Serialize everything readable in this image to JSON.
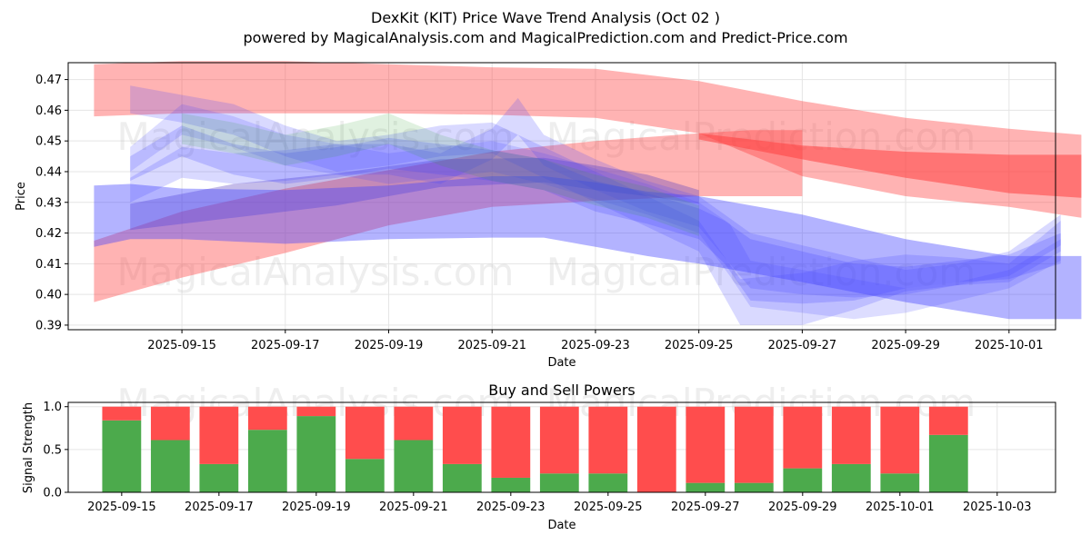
{
  "figure": {
    "title_line1": "DexKit (KIT) Price Wave Trend Analysis (Oct 02 )",
    "title_line2": "powered by MagicalAnalysis.com and MagicalPrediction.com and Predict-Price.com",
    "watermarks": [
      "MagicalAnalysis.com",
      "MagicalPrediction.com"
    ]
  },
  "chart_data": [
    {
      "type": "area",
      "title": "",
      "xlabel": "Date",
      "ylabel": "Price",
      "x_start": "2025-09-13",
      "xlim": [
        -0.2,
        18.9
      ],
      "ylim": [
        0.3885,
        0.4755
      ],
      "x_ticks": [
        {
          "pos": 2,
          "label": "2025-09-15"
        },
        {
          "pos": 4,
          "label": "2025-09-17"
        },
        {
          "pos": 6,
          "label": "2025-09-19"
        },
        {
          "pos": 8,
          "label": "2025-09-21"
        },
        {
          "pos": 10,
          "label": "2025-09-23"
        },
        {
          "pos": 12,
          "label": "2025-09-25"
        },
        {
          "pos": 14,
          "label": "2025-09-27"
        },
        {
          "pos": 16,
          "label": "2025-09-29"
        },
        {
          "pos": 18,
          "label": "2025-10-01"
        }
      ],
      "y_ticks": [
        0.39,
        0.4,
        0.41,
        0.42,
        0.43,
        0.44,
        0.45,
        0.46,
        0.47
      ],
      "grid": true,
      "series": [
        {
          "name": "red-upper-band",
          "color": "#ff4040",
          "opacity": 0.4,
          "x": [
            0.3,
            2,
            4,
            6,
            8,
            10,
            12,
            14,
            16,
            18,
            19.4
          ],
          "upper": [
            0.475,
            0.476,
            0.476,
            0.475,
            0.474,
            0.4735,
            0.4695,
            0.463,
            0.4575,
            0.454,
            0.452
          ],
          "lower": [
            0.458,
            0.459,
            0.459,
            0.459,
            0.4585,
            0.4575,
            0.4525,
            0.4385,
            0.432,
            0.4285,
            0.425
          ]
        },
        {
          "name": "red-lower-band",
          "color": "#ff4040",
          "opacity": 0.4,
          "x": [
            0.3,
            2,
            4,
            6,
            8,
            10,
            12,
            13,
            14
          ],
          "upper": [
            0.4175,
            0.427,
            0.4345,
            0.4405,
            0.4465,
            0.45,
            0.4525,
            0.4535,
            0.4535
          ],
          "lower": [
            0.3975,
            0.4055,
            0.4135,
            0.4225,
            0.4285,
            0.4305,
            0.432,
            0.432,
            0.432
          ]
        },
        {
          "name": "red-forecast-band",
          "color": "#ff4040",
          "opacity": 0.55,
          "x": [
            12,
            14,
            16,
            18,
            19.4
          ],
          "upper": [
            0.4525,
            0.4485,
            0.4465,
            0.4455,
            0.4455
          ],
          "lower": [
            0.4505,
            0.444,
            0.438,
            0.433,
            0.4315
          ]
        },
        {
          "name": "purple-band",
          "color": "#5a3fc0",
          "opacity": 0.35,
          "x": [
            1,
            3,
            5,
            7,
            9,
            10,
            11,
            12
          ],
          "upper": [
            0.4295,
            0.436,
            0.4395,
            0.444,
            0.4445,
            0.442,
            0.439,
            0.434
          ],
          "lower": [
            0.421,
            0.425,
            0.429,
            0.435,
            0.4365,
            0.434,
            0.432,
            0.4295
          ]
        },
        {
          "name": "blue-base-band",
          "color": "#4040ff",
          "opacity": 0.4,
          "x": [
            0.3,
            1,
            2,
            4,
            6,
            8,
            9,
            10,
            11,
            12,
            14,
            16,
            18
          ],
          "upper": [
            0.4355,
            0.436,
            0.4345,
            0.434,
            0.4355,
            0.4385,
            0.4385,
            0.4365,
            0.4335,
            0.432,
            0.426,
            0.418,
            0.4125
          ],
          "lower": [
            0.4155,
            0.418,
            0.418,
            0.4165,
            0.418,
            0.4185,
            0.4185,
            0.4155,
            0.4125,
            0.41,
            0.404,
            0.3975,
            0.392
          ]
        },
        {
          "name": "blue-forecast-box",
          "color": "#4040ff",
          "opacity": 0.4,
          "x": [
            18,
            19.4
          ],
          "upper": [
            0.4125,
            0.4125
          ],
          "lower": [
            0.392,
            0.392
          ]
        },
        {
          "name": "blue-wave-1",
          "color": "#4040ff",
          "opacity": 0.22,
          "x": [
            1,
            2,
            3,
            4,
            5,
            6,
            7,
            8,
            9,
            10,
            11,
            12,
            12.5,
            13,
            14,
            15,
            16,
            17,
            18,
            19
          ],
          "upper": [
            0.445,
            0.455,
            0.449,
            0.446,
            0.448,
            0.451,
            0.449,
            0.447,
            0.444,
            0.437,
            0.433,
            0.428,
            0.424,
            0.418,
            0.414,
            0.41,
            0.409,
            0.411,
            0.413,
            0.42
          ],
          "lower": [
            0.437,
            0.445,
            0.439,
            0.436,
            0.438,
            0.441,
            0.439,
            0.437,
            0.434,
            0.427,
            0.423,
            0.418,
            0.41,
            0.398,
            0.397,
            0.398,
            0.402,
            0.404,
            0.405,
            0.41
          ]
        },
        {
          "name": "blue-wave-2",
          "color": "#4040ff",
          "opacity": 0.2,
          "x": [
            1,
            2,
            3,
            4,
            5,
            6,
            7,
            8,
            9,
            10,
            11,
            12,
            12.8,
            14,
            15,
            16,
            17,
            18,
            19
          ],
          "upper": [
            0.468,
            0.465,
            0.462,
            0.455,
            0.45,
            0.452,
            0.455,
            0.456,
            0.448,
            0.44,
            0.432,
            0.424,
            0.405,
            0.407,
            0.411,
            0.413,
            0.412,
            0.41,
            0.424
          ],
          "lower": [
            0.459,
            0.456,
            0.452,
            0.445,
            0.44,
            0.442,
            0.445,
            0.446,
            0.438,
            0.43,
            0.422,
            0.414,
            0.39,
            0.39,
            0.395,
            0.401,
            0.403,
            0.404,
            0.414
          ]
        },
        {
          "name": "blue-wave-3",
          "color": "#4040ff",
          "opacity": 0.2,
          "x": [
            1,
            2,
            3,
            4,
            5,
            6,
            7,
            8,
            8.5,
            9,
            10,
            11,
            12,
            12.5,
            13,
            14,
            15,
            16,
            17,
            18,
            19
          ],
          "upper": [
            0.438,
            0.448,
            0.446,
            0.447,
            0.449,
            0.449,
            0.446,
            0.454,
            0.464,
            0.452,
            0.444,
            0.437,
            0.432,
            0.426,
            0.42,
            0.416,
            0.412,
            0.408,
            0.41,
            0.414,
            0.426
          ],
          "lower": [
            0.43,
            0.438,
            0.436,
            0.437,
            0.439,
            0.439,
            0.436,
            0.444,
            0.452,
            0.442,
            0.434,
            0.427,
            0.422,
            0.412,
            0.402,
            0.4,
            0.399,
            0.4,
            0.403,
            0.406,
            0.416
          ]
        },
        {
          "name": "blue-wave-4",
          "color": "#4040ff",
          "opacity": 0.18,
          "x": [
            1,
            2,
            3,
            4,
            5,
            6,
            7,
            8,
            9,
            10,
            11,
            12,
            12.6,
            13,
            14,
            15,
            16,
            17,
            18,
            19
          ],
          "upper": [
            0.448,
            0.462,
            0.458,
            0.452,
            0.449,
            0.446,
            0.448,
            0.45,
            0.446,
            0.441,
            0.436,
            0.43,
            0.423,
            0.411,
            0.408,
            0.405,
            0.402,
            0.404,
            0.408,
            0.418
          ],
          "lower": [
            0.44,
            0.452,
            0.448,
            0.442,
            0.439,
            0.436,
            0.438,
            0.44,
            0.436,
            0.431,
            0.426,
            0.42,
            0.406,
            0.396,
            0.394,
            0.392,
            0.394,
            0.398,
            0.402,
            0.411
          ]
        },
        {
          "name": "green-wave",
          "color": "#2ca02c",
          "opacity": 0.15,
          "x": [
            2,
            3,
            4,
            5,
            6,
            7,
            8,
            9,
            10,
            11,
            12
          ],
          "upper": [
            0.459,
            0.456,
            0.452,
            0.455,
            0.459,
            0.452,
            0.447,
            0.444,
            0.439,
            0.435,
            0.429
          ],
          "lower": [
            0.449,
            0.446,
            0.442,
            0.445,
            0.449,
            0.442,
            0.437,
            0.434,
            0.429,
            0.425,
            0.419
          ]
        }
      ]
    },
    {
      "type": "bar",
      "title": "Buy and Sell Powers",
      "xlabel": "Date",
      "ylabel": "Signal Strength",
      "stacked": true,
      "xlim": [
        -1.1,
        19.2
      ],
      "ylim": [
        0,
        1.05
      ],
      "y_ticks": [
        0.0,
        0.5,
        1.0
      ],
      "x_ticks": [
        {
          "pos": 0,
          "label": "2025-09-15"
        },
        {
          "pos": 2,
          "label": "2025-09-17"
        },
        {
          "pos": 4,
          "label": "2025-09-19"
        },
        {
          "pos": 6,
          "label": "2025-09-21"
        },
        {
          "pos": 8,
          "label": "2025-09-23"
        },
        {
          "pos": 10,
          "label": "2025-09-25"
        },
        {
          "pos": 12,
          "label": "2025-09-27"
        },
        {
          "pos": 14,
          "label": "2025-09-29"
        },
        {
          "pos": 16,
          "label": "2025-10-01"
        },
        {
          "pos": 18,
          "label": "2025-10-03"
        }
      ],
      "categories": [
        "2025-09-15",
        "2025-09-16",
        "2025-09-17",
        "2025-09-18",
        "2025-09-19",
        "2025-09-20",
        "2025-09-21",
        "2025-09-22",
        "2025-09-23",
        "2025-09-24",
        "2025-09-25",
        "2025-09-26",
        "2025-09-27",
        "2025-09-28",
        "2025-09-29",
        "2025-09-30",
        "2025-10-01",
        "2025-10-02"
      ],
      "series": [
        {
          "name": "Buy",
          "color": "#4caa4c",
          "values": [
            0.84,
            0.61,
            0.33,
            0.73,
            0.89,
            0.39,
            0.61,
            0.33,
            0.17,
            0.22,
            0.22,
            0.0,
            0.11,
            0.11,
            0.28,
            0.33,
            0.22,
            0.67
          ]
        },
        {
          "name": "Sell",
          "color": "#ff4d4d",
          "values": [
            0.16,
            0.39,
            0.67,
            0.27,
            0.11,
            0.61,
            0.39,
            0.67,
            0.83,
            0.78,
            0.78,
            1.0,
            0.89,
            0.89,
            0.72,
            0.67,
            0.78,
            0.33
          ]
        }
      ]
    }
  ]
}
